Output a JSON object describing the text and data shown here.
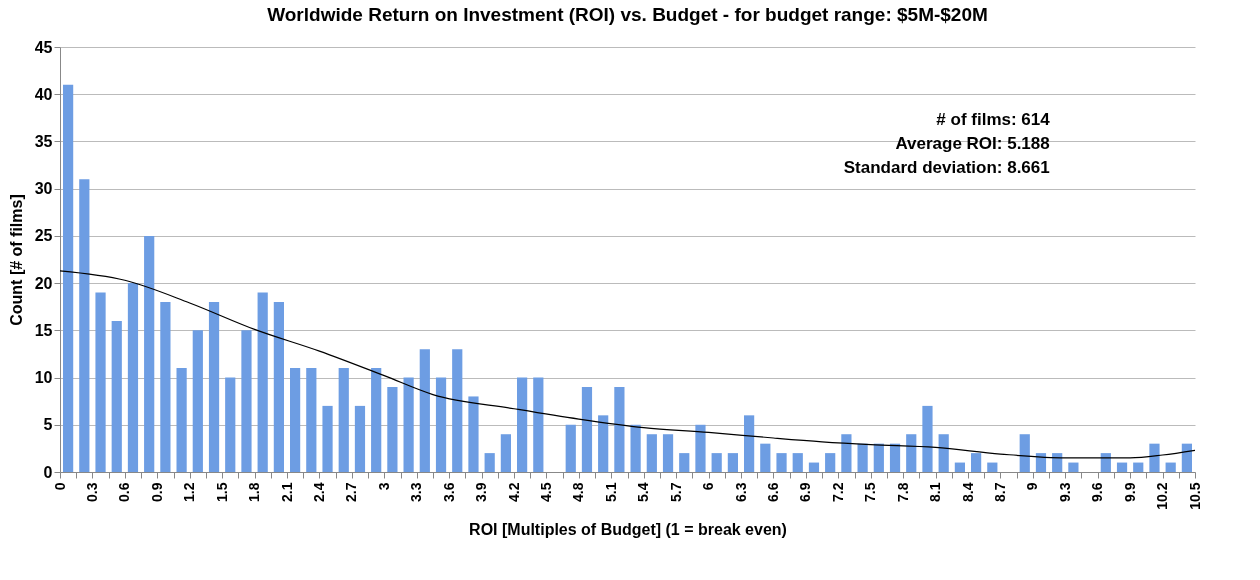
{
  "chart_data": {
    "type": "histogram",
    "title": "Worldwide Return on Investment (ROI) vs. Budget - for budget range: $5M-$20M",
    "xlabel": "ROI [Multiples of Budget] (1 = break even)",
    "ylabel": "Count [# of films]",
    "annotations": [
      "# of films: 614",
      "Average ROI: 5.188",
      "Standard deviation: 8.661"
    ],
    "bins": [
      0,
      0.15,
      0.3,
      0.45,
      0.6,
      0.75,
      0.9,
      1.05,
      1.2,
      1.35,
      1.5,
      1.65,
      1.8,
      1.95,
      2.1,
      2.25,
      2.4,
      2.55,
      2.7,
      2.85,
      3,
      3.15,
      3.3,
      3.45,
      3.6,
      3.75,
      3.9,
      4.05,
      4.2,
      4.35,
      4.5,
      4.65,
      4.8,
      4.95,
      5.1,
      5.25,
      5.4,
      5.55,
      5.7,
      5.85,
      6,
      6.15,
      6.3,
      6.45,
      6.6,
      6.75,
      6.9,
      7.05,
      7.2,
      7.35,
      7.5,
      7.65,
      7.8,
      7.95,
      8.1,
      8.25,
      8.4,
      8.55,
      8.7,
      8.85,
      9,
      9.15,
      9.3,
      9.45,
      9.6,
      9.75,
      9.9,
      10.05,
      10.2,
      10.35,
      10.5
    ],
    "values": [
      41,
      31,
      19,
      16,
      20,
      25,
      18,
      11,
      15,
      18,
      10,
      15,
      19,
      18,
      11,
      11,
      7,
      11,
      7,
      11,
      9,
      10,
      13,
      10,
      13,
      8,
      2,
      4,
      10,
      10,
      0,
      5,
      9,
      6,
      9,
      5,
      4,
      4,
      2,
      5,
      2,
      2,
      6,
      3,
      2,
      2,
      1,
      2,
      4,
      3,
      3,
      3,
      4,
      7,
      4,
      1,
      2,
      1,
      0,
      4,
      2,
      2,
      1,
      0,
      2,
      1,
      1,
      3,
      1,
      3
    ],
    "color": "#6d9de3",
    "series": [
      {
        "type": "line",
        "color": "#000000",
        "x": [
          0,
          0.6,
          1.2,
          1.8,
          2.4,
          3,
          3.45,
          4.2,
          4.8,
          5.4,
          6,
          6.6,
          7.05,
          7.5,
          8.1,
          8.7,
          9.3,
          9.9,
          10.2,
          10.5
        ],
        "values": [
          21.3,
          20.3,
          17.9,
          15.1,
          12.8,
          10.2,
          8.2,
          6.7,
          5.6,
          4.7,
          4.2,
          3.6,
          3.2,
          2.9,
          2.6,
          1.9,
          1.5,
          1.5,
          1.8,
          2.3
        ]
      }
    ],
    "xlim": [
      0,
      10.5
    ],
    "xticks": [
      0,
      {
        "value": 0.15,
        "label": null
      },
      0.3,
      {
        "value": 0.45,
        "label": null
      },
      0.6,
      {
        "value": 0.75,
        "label": null
      },
      0.9,
      {
        "value": 1.05,
        "label": null
      },
      1.2,
      {
        "value": 1.35,
        "label": null
      },
      1.5,
      {
        "value": 1.65,
        "label": null
      },
      1.8,
      {
        "value": 1.95,
        "label": null
      },
      2.1,
      {
        "value": 2.25,
        "label": null
      },
      2.4,
      {
        "value": 2.55,
        "label": null
      },
      2.7,
      {
        "value": 2.85,
        "label": null
      },
      3,
      {
        "value": 3.15,
        "label": null
      },
      3.3,
      {
        "value": 3.45,
        "label": null
      },
      3.6,
      {
        "value": 3.75,
        "label": null
      },
      3.9,
      {
        "value": 4.05,
        "label": null
      },
      4.2,
      {
        "value": 4.35,
        "label": null
      },
      4.5,
      {
        "value": 4.65,
        "label": null
      },
      4.8,
      {
        "value": 4.95,
        "label": null
      },
      5.1,
      {
        "value": 5.25,
        "label": null
      },
      5.4,
      {
        "value": 5.55,
        "label": null
      },
      5.7,
      {
        "value": 5.85,
        "label": null
      },
      6,
      {
        "value": 6.15,
        "label": null
      },
      6.3,
      {
        "value": 6.45,
        "label": null
      },
      6.6,
      {
        "value": 6.75,
        "label": null
      },
      6.9,
      {
        "value": 7.05,
        "label": null
      },
      7.2,
      {
        "value": 7.35,
        "label": null
      },
      7.5,
      {
        "value": 7.65,
        "label": null
      },
      7.8,
      {
        "value": 7.95,
        "label": null
      },
      8.1,
      {
        "value": 8.25,
        "label": null
      },
      8.4,
      {
        "value": 8.55,
        "label": null
      },
      8.7,
      {
        "value": 8.85,
        "label": null
      },
      9,
      {
        "value": 9.15,
        "label": null
      },
      9.3,
      {
        "value": 9.45,
        "label": null
      },
      9.6,
      {
        "value": 9.75,
        "label": null
      },
      9.9,
      {
        "value": 10.05,
        "label": null
      },
      10.2,
      {
        "value": 10.35,
        "label": null
      },
      10.5
    ],
    "ylim": [
      0,
      45
    ],
    "yticks": [
      0,
      5,
      10,
      15,
      20,
      25,
      30,
      35,
      40,
      45
    ],
    "grid": "y"
  }
}
